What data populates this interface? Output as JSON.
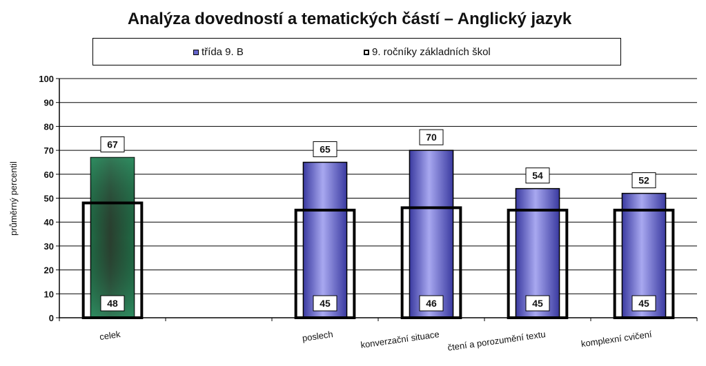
{
  "chart_data": {
    "type": "bar",
    "title": "Analýza dovedností a tematických částí – Anglický jazyk",
    "ylabel": "průměrný percentil",
    "xlabel": "",
    "ylim": [
      0,
      100
    ],
    "yticks": [
      "0",
      "10",
      "20",
      "30",
      "40",
      "50",
      "60",
      "70",
      "80",
      "90",
      "100"
    ],
    "categories": [
      "celek",
      "",
      "poslech",
      "konverzační situace",
      "čtení a porozumění textu",
      "komplexní cvičení"
    ],
    "series": [
      {
        "name": "třída 9. B",
        "values": [
          67,
          null,
          65,
          70,
          54,
          52
        ],
        "color": "#6666cc",
        "highlight_color": "#2e8b57",
        "highlight_index": 0
      },
      {
        "name": "9. ročníky základních škol",
        "values": [
          48,
          null,
          45,
          46,
          45,
          45
        ],
        "color": "#000000",
        "style": "outline"
      }
    ],
    "grid": true,
    "legend_position": "top"
  }
}
